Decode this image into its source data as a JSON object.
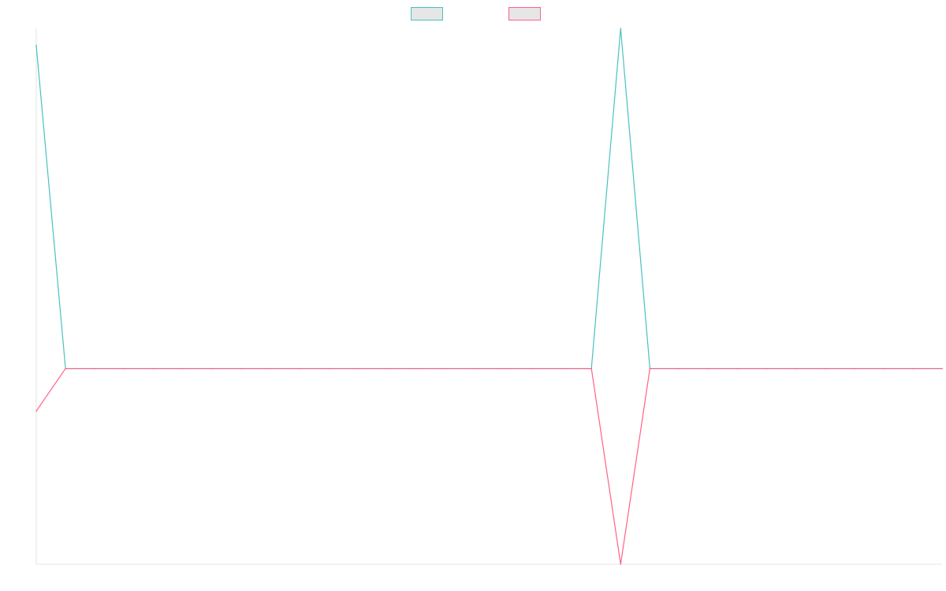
{
  "chart_data": {
    "type": "line",
    "x": [
      0,
      1,
      2,
      3,
      4,
      5,
      6,
      7,
      8,
      9,
      10,
      11,
      12,
      13,
      14,
      15,
      16,
      17,
      18,
      19,
      20,
      21,
      22,
      23,
      24,
      25,
      26,
      27,
      28,
      29,
      30,
      31
    ],
    "series": [
      {
        "color": "#4bc0c0",
        "fill": "#e6e6e6",
        "values": [
          380,
          0,
          0,
          0,
          0,
          0,
          0,
          0,
          0,
          0,
          0,
          0,
          0,
          0,
          0,
          0,
          0,
          0,
          0,
          0,
          400,
          0,
          0,
          0,
          0,
          0,
          0,
          0,
          0,
          0,
          0,
          0
        ]
      },
      {
        "color": "#ff6384",
        "fill": "#e6e6e6",
        "values": [
          -50,
          0,
          0,
          0,
          0,
          0,
          0,
          0,
          0,
          0,
          0,
          0,
          0,
          0,
          0,
          0,
          0,
          0,
          0,
          0,
          -230,
          0,
          0,
          0,
          0,
          0,
          0,
          0,
          0,
          0,
          0,
          0
        ]
      }
    ],
    "ylim": [
      -230,
      400
    ],
    "grid": false,
    "legend": "top-center"
  }
}
